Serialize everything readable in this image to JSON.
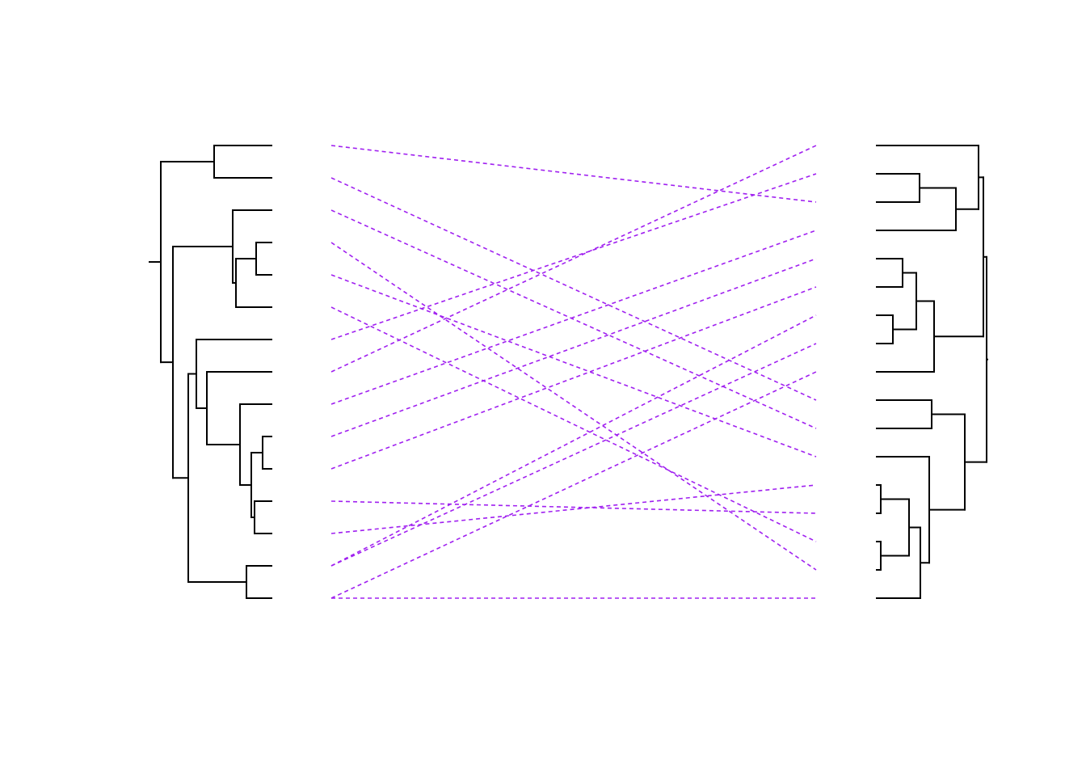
{
  "diagram": {
    "type": "tanglegram",
    "title": "",
    "colors": {
      "tree": "#000000",
      "connector": "#a020f0",
      "background": "#ffffff"
    },
    "connector_style": "dashed",
    "left_leaf_count": 15,
    "right_leaf_count": 17,
    "connections": [
      [
        0,
        2
      ],
      [
        1,
        9
      ],
      [
        2,
        10
      ],
      [
        3,
        15
      ],
      [
        4,
        11
      ],
      [
        5,
        14
      ],
      [
        6,
        1
      ],
      [
        7,
        0
      ],
      [
        8,
        3
      ],
      [
        9,
        4
      ],
      [
        10,
        5
      ],
      [
        11,
        13
      ],
      [
        12,
        12
      ],
      [
        13,
        6
      ],
      [
        13,
        7
      ],
      [
        14,
        8
      ],
      [
        14,
        16
      ]
    ]
  }
}
